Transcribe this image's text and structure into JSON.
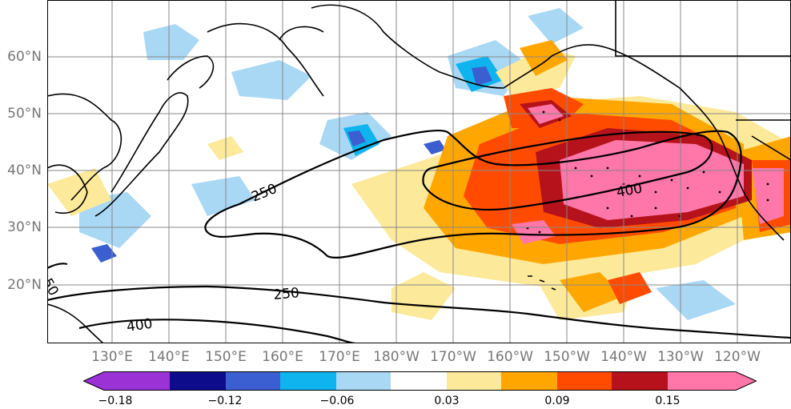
{
  "map": {
    "lat_labels": [
      "60°N",
      "50°N",
      "40°N",
      "30°N",
      "20°N"
    ],
    "lon_labels": [
      "130°E",
      "140°E",
      "150°E",
      "160°E",
      "170°E",
      "180°W",
      "170°W",
      "160°W",
      "150°W",
      "140°W",
      "130°W",
      "120°W"
    ],
    "contour_labels": [
      "250",
      "400",
      "250",
      "400",
      "50"
    ],
    "grid_color": "#888888",
    "coastline_color": "#000000"
  },
  "colorbar": {
    "tick_labels": [
      "−0.18",
      "−0.12",
      "−0.06",
      "0.03",
      "0.09",
      "0.15"
    ],
    "colors": [
      "#9b32d6",
      "#0d0d8c",
      "#3b5fd1",
      "#0fb4ee",
      "#a9d8f5",
      "#ffffff",
      "#fde99a",
      "#ffa700",
      "#ff4b00",
      "#b5121b",
      "#ff76a8"
    ]
  }
}
